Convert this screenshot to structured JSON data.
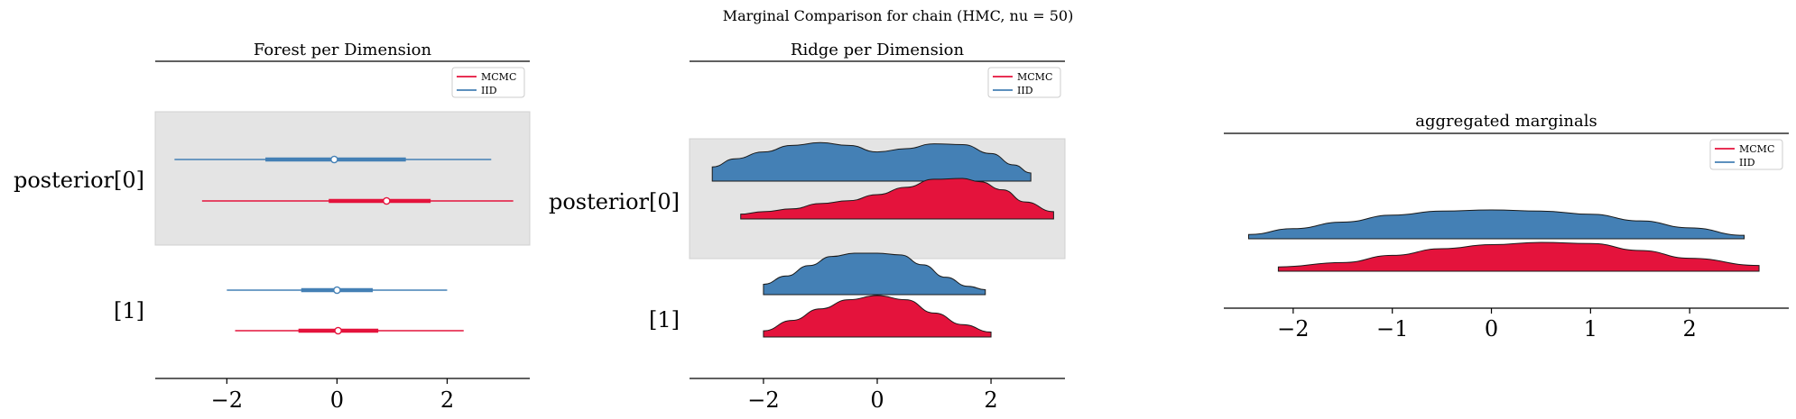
{
  "suptitle": "Marginal Comparison for chain (HMC, nu = 50)",
  "colors": {
    "mcmc": "#e4133c",
    "iid": "#4480b5",
    "band": "#e4e4e4"
  },
  "chart_data": [
    {
      "type": "forest",
      "title": "Forest per Dimension",
      "xlim": [
        -3.3,
        3.5
      ],
      "xticks": [
        -2,
        0,
        2
      ],
      "xtick_labels": [
        "−2",
        "0",
        "2"
      ],
      "row_labels": [
        "posterior[0]",
        "[1]"
      ],
      "legend": {
        "placement": "top-right",
        "entries": [
          "MCMC",
          "IID"
        ]
      },
      "series": [
        {
          "name": "IID",
          "rows": [
            {
              "hdi94": [
                -2.95,
                2.8
              ],
              "hdi50": [
                -1.3,
                1.25
              ],
              "median": -0.05
            },
            {
              "hdi94": [
                -2.0,
                2.0
              ],
              "hdi50": [
                -0.65,
                0.65
              ],
              "median": 0.0
            }
          ]
        },
        {
          "name": "MCMC",
          "rows": [
            {
              "hdi94": [
                -2.45,
                3.2
              ],
              "hdi50": [
                -0.15,
                1.7
              ],
              "median": 0.9
            },
            {
              "hdi94": [
                -1.85,
                2.3
              ],
              "hdi50": [
                -0.7,
                0.75
              ],
              "median": 0.02
            }
          ]
        }
      ]
    },
    {
      "type": "ridge",
      "title": "Ridge per Dimension",
      "xlim": [
        -3.3,
        3.3
      ],
      "xticks": [
        -2,
        0,
        2
      ],
      "xtick_labels": [
        "−2",
        "0",
        "2"
      ],
      "row_labels": [
        "posterior[0]",
        "[1]"
      ],
      "legend": {
        "placement": "top-right",
        "entries": [
          "MCMC",
          "IID"
        ]
      },
      "series": [
        {
          "name": "IID",
          "rows": [
            {
              "x": [
                -2.9,
                -2.5,
                -2.0,
                -1.5,
                -1.0,
                -0.5,
                0.0,
                0.5,
                1.0,
                1.5,
                2.0,
                2.4,
                2.7
              ],
              "density": [
                0.35,
                0.55,
                0.72,
                0.88,
                0.95,
                0.88,
                0.72,
                0.8,
                0.92,
                0.9,
                0.68,
                0.4,
                0.2
              ]
            },
            {
              "x": [
                -2.0,
                -1.6,
                -1.2,
                -0.8,
                -0.4,
                0.0,
                0.4,
                0.8,
                1.2,
                1.6,
                1.9
              ],
              "density": [
                0.25,
                0.45,
                0.7,
                0.92,
                1.0,
                1.0,
                0.96,
                0.72,
                0.42,
                0.2,
                0.12
              ]
            }
          ]
        },
        {
          "name": "MCMC",
          "rows": [
            {
              "x": [
                -2.4,
                -2.0,
                -1.5,
                -1.0,
                -0.5,
                0.0,
                0.5,
                1.0,
                1.5,
                1.8,
                2.2,
                2.6,
                3.1
              ],
              "density": [
                0.12,
                0.18,
                0.25,
                0.38,
                0.45,
                0.6,
                0.78,
                0.98,
                1.0,
                0.92,
                0.72,
                0.42,
                0.18
              ]
            },
            {
              "x": [
                -2.0,
                -1.5,
                -1.0,
                -0.5,
                0.0,
                0.5,
                1.0,
                1.5,
                2.0
              ],
              "density": [
                0.15,
                0.4,
                0.68,
                0.9,
                1.0,
                0.9,
                0.58,
                0.3,
                0.12
              ]
            }
          ]
        }
      ]
    },
    {
      "type": "ridge",
      "title": "aggregated marginals",
      "xlim": [
        -2.7,
        3.0
      ],
      "xticks": [
        -2,
        -1,
        0,
        1,
        2
      ],
      "xtick_labels": [
        "−2",
        "−1",
        "0",
        "1",
        "2"
      ],
      "row_labels": [],
      "legend": {
        "placement": "top-right",
        "entries": [
          "MCMC",
          "IID"
        ]
      },
      "series": [
        {
          "name": "IID",
          "rows": [
            {
              "x": [
                -2.45,
                -2.0,
                -1.5,
                -1.0,
                -0.5,
                0.0,
                0.5,
                1.0,
                1.5,
                2.0,
                2.55
              ],
              "density": [
                0.15,
                0.35,
                0.58,
                0.82,
                0.96,
                1.0,
                0.96,
                0.85,
                0.62,
                0.38,
                0.12
              ]
            }
          ]
        },
        {
          "name": "MCMC",
          "rows": [
            {
              "x": [
                -2.15,
                -1.5,
                -1.0,
                -0.5,
                0.0,
                0.5,
                1.0,
                1.5,
                2.0,
                2.7
              ],
              "density": [
                0.15,
                0.3,
                0.55,
                0.78,
                0.92,
                1.0,
                0.96,
                0.72,
                0.45,
                0.2
              ]
            }
          ]
        }
      ]
    }
  ]
}
